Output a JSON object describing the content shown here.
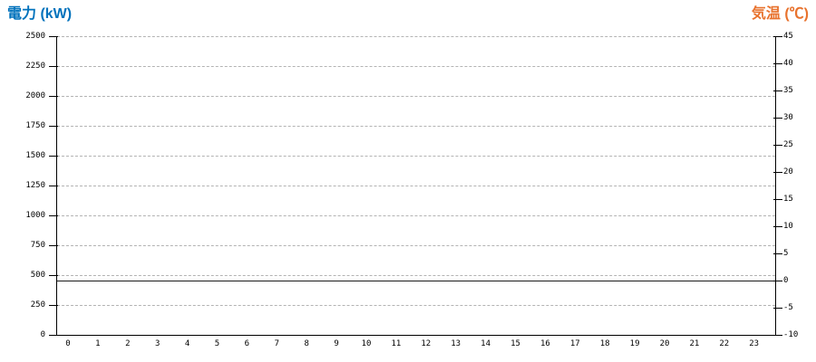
{
  "page": {
    "background": "#ffffff"
  },
  "chart_data": {
    "type": "line",
    "title": "",
    "description": "Dual-axis hourly chart of power (kW, left) and temperature (deg C, right); no data series plotted, only axes, gridlines and the 0 deg C reference line are visible",
    "left_axis": {
      "title": "電力 (kW)",
      "title_color": "#0072BC",
      "min": 0,
      "max": 2500,
      "step": 250,
      "ticks": [
        2500,
        2250,
        2000,
        1750,
        1500,
        1250,
        1000,
        750,
        500,
        250,
        0
      ]
    },
    "right_axis": {
      "title": "気温 (℃)",
      "title_color": "#E8722D",
      "min": -10,
      "max": 45,
      "step": 5,
      "ticks": [
        45,
        40,
        35,
        30,
        25,
        20,
        15,
        10,
        5,
        0,
        -5,
        -10
      ]
    },
    "x_axis": {
      "labels": [
        "0",
        "1",
        "2",
        "3",
        "4",
        "5",
        "6",
        "7",
        "8",
        "9",
        "10",
        "11",
        "12",
        "13",
        "14",
        "15",
        "16",
        "17",
        "18",
        "19",
        "20",
        "21",
        "22",
        "23"
      ]
    },
    "series": [],
    "annotations": [
      {
        "name": "zero-temperature-line",
        "axis": "right",
        "value": 0,
        "style": "solid",
        "color": "#1a1a1a"
      }
    ],
    "grid": {
      "horizontal": true,
      "vertical": false,
      "style": "dashed",
      "color": "#b3b3b3"
    },
    "axis_line_color": "#000000",
    "tick_label_color": "#000000"
  }
}
